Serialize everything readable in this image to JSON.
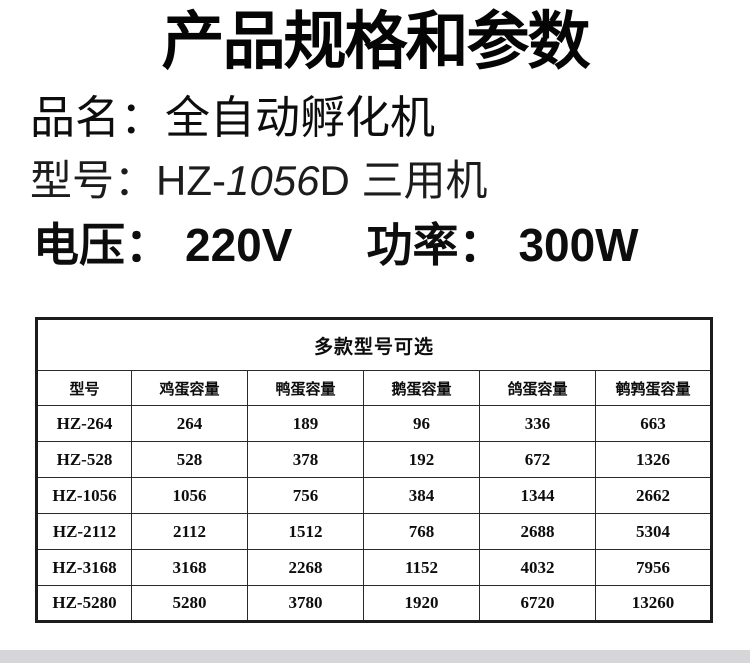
{
  "page": {
    "title": "产品规格和参数",
    "product_name_label": "品名：",
    "product_name_value": "全自动孵化机",
    "model_label": "型号：",
    "model_prefix": "HZ-",
    "model_number": "1056",
    "model_suffix": "D 三用机",
    "voltage_label": "电压：",
    "voltage_value": "220V",
    "power_label": "功率：",
    "power_value": "300W"
  },
  "table": {
    "caption": "多款型号可选",
    "columns": [
      "型号",
      "鸡蛋容量",
      "鸭蛋容量",
      "鹅蛋容量",
      "鸽蛋容量",
      "鹌鹑蛋容量"
    ],
    "rows": [
      [
        "HZ-264",
        "264",
        "189",
        "96",
        "336",
        "663"
      ],
      [
        "HZ-528",
        "528",
        "378",
        "192",
        "672",
        "1326"
      ],
      [
        "HZ-1056",
        "1056",
        "756",
        "384",
        "1344",
        "2662"
      ],
      [
        "HZ-2112",
        "2112",
        "1512",
        "768",
        "2688",
        "5304"
      ],
      [
        "HZ-3168",
        "3168",
        "2268",
        "1152",
        "4032",
        "7956"
      ],
      [
        "HZ-5280",
        "5280",
        "3780",
        "1920",
        "6720",
        "13260"
      ]
    ]
  },
  "colors": {
    "text": "#0d0d0d",
    "table_border": "#1c1c1c",
    "bottom_bar": "#d6d6d9"
  }
}
